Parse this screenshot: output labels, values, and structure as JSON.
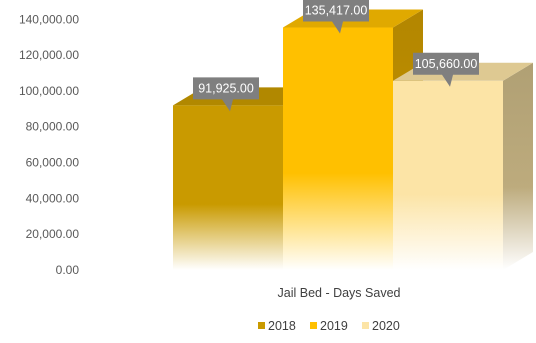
{
  "chart_data": {
    "type": "bar",
    "categories": [
      "Jail Bed - Days Saved"
    ],
    "series": [
      {
        "name": "2018",
        "values": [
          91925
        ],
        "label": "91,925.00",
        "color": "#C99A00"
      },
      {
        "name": "2019",
        "values": [
          135417
        ],
        "label": "135,417.00",
        "color": "#FFC000"
      },
      {
        "name": "2020",
        "values": [
          105660
        ],
        "label": "105,660.00",
        "color": "#FCE4A6"
      }
    ],
    "yticks": [
      "0.00",
      "20,000.00",
      "40,000.00",
      "60,000.00",
      "80,000.00",
      "100,000.00",
      "120,000.00",
      "140,000.00"
    ],
    "ylim": [
      0,
      140000
    ],
    "legend_position": "bottom",
    "style": "3d-column",
    "grid": false,
    "data_label_color": "#7F7F7F"
  }
}
